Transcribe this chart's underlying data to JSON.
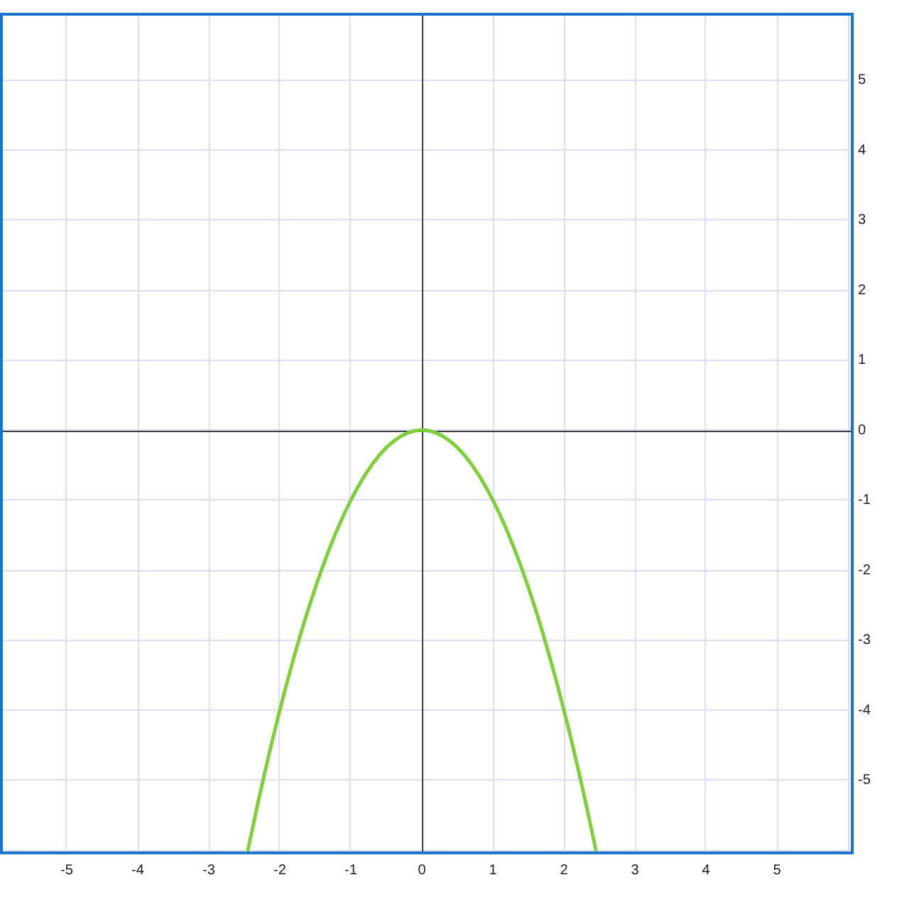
{
  "chart_data": {
    "type": "line",
    "color": "#7ed03a",
    "marker": "none",
    "grid": true,
    "x": [
      -2.45,
      -2.4,
      -2.3,
      -2.2,
      -2.1,
      -2.0,
      -1.9,
      -1.8,
      -1.7,
      -1.6,
      -1.5,
      -1.4,
      -1.3,
      -1.2,
      -1.1,
      -1.0,
      -0.9,
      -0.8,
      -0.7,
      -0.6,
      -0.5,
      -0.4,
      -0.3,
      -0.2,
      -0.1,
      0,
      0.1,
      0.2,
      0.3,
      0.4,
      0.5,
      0.6,
      0.7,
      0.8,
      0.9,
      1.0,
      1.1,
      1.2,
      1.3,
      1.4,
      1.5,
      1.6,
      1.7,
      1.8,
      1.9,
      2.0,
      2.1,
      2.2,
      2.3,
      2.4,
      2.45
    ],
    "values": [
      -6.0,
      -5.76,
      -5.29,
      -4.84,
      -4.41,
      -4,
      -3.61,
      -3.24,
      -2.89,
      -2.56,
      -2.25,
      -1.96,
      -1.69,
      -1.44,
      -1.21,
      -1,
      -0.81,
      -0.64,
      -0.49,
      -0.36,
      -0.25,
      -0.16,
      -0.09,
      -0.04,
      -0.01,
      0,
      -0.01,
      -0.04,
      -0.09,
      -0.16,
      -0.25,
      -0.36,
      -0.49,
      -0.64,
      -0.81,
      -1,
      -1.21,
      -1.44,
      -1.69,
      -1.96,
      -2.25,
      -2.56,
      -2.89,
      -3.24,
      -3.61,
      -4,
      -4.41,
      -4.84,
      -5.29,
      -5.76,
      -6.0
    ],
    "xlim": [
      -5.92,
      6.06
    ],
    "ylim": [
      -6.04,
      5.94
    ],
    "xticks": [
      -5,
      -4,
      -3,
      -2,
      -1,
      0,
      1,
      2,
      3,
      4,
      5,
      {
        "value": 6,
        "label": null
      }
    ],
    "yticks": [
      {
        "value": -6,
        "label": null
      },
      -5,
      -4,
      -3,
      -2,
      -1,
      0,
      1,
      2,
      3,
      4,
      5
    ]
  }
}
